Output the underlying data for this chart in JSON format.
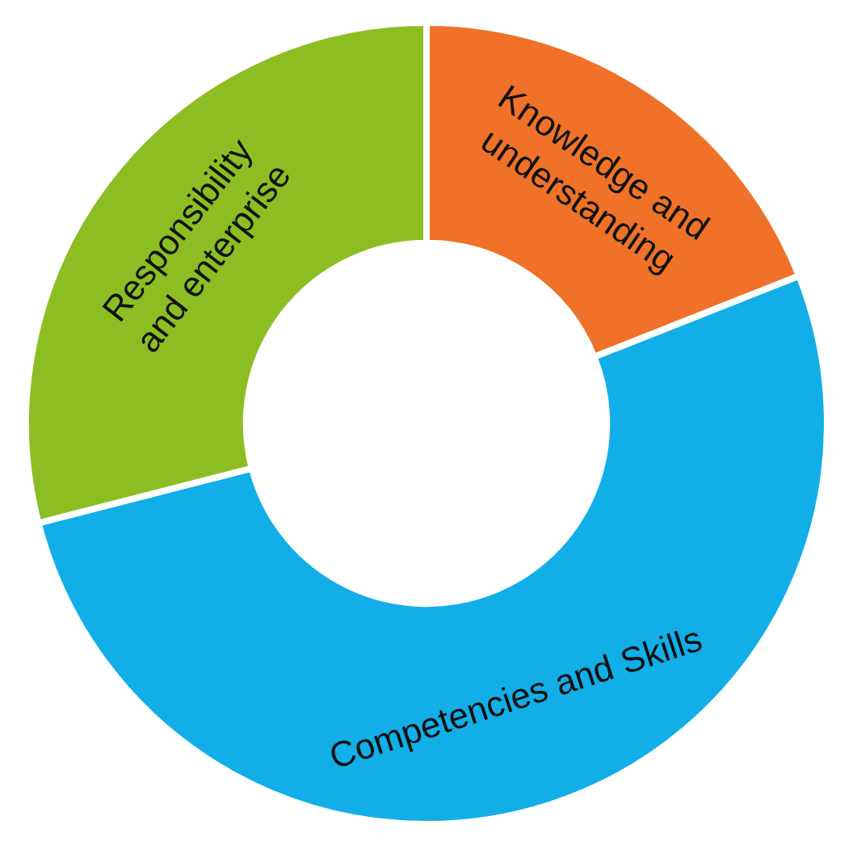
{
  "chart_data": {
    "type": "donut",
    "categories": [
      "Knowledge and understanding",
      "Competencies and Skills",
      "Responsibility and enterprise"
    ],
    "values": [
      19,
      52,
      29
    ],
    "colors": [
      "#f07228",
      "#12aee8",
      "#8cbe23"
    ],
    "legend": false
  }
}
